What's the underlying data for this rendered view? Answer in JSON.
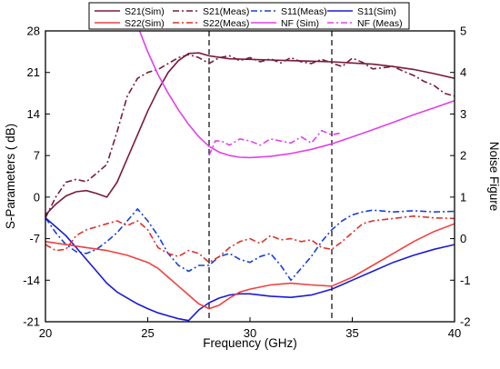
{
  "chart_data": {
    "type": "line",
    "xlabel": "Frequency (GHz)",
    "ylabel": "S-Parameters ( dB)",
    "y2label": "Noise Figure",
    "xlim": [
      20,
      40
    ],
    "ylim": [
      -21,
      28
    ],
    "y2lim": [
      -2,
      5
    ],
    "xticks": [
      20,
      25,
      30,
      35,
      40
    ],
    "yticks": [
      -21,
      -14,
      -7,
      0,
      7,
      14,
      21,
      28
    ],
    "y2ticks": [
      -2,
      -1,
      0,
      1,
      2,
      3,
      4,
      5
    ],
    "vlines": [
      28,
      34
    ],
    "grid": false,
    "legend_position": "top",
    "series": [
      {
        "name": "S21(Sim)",
        "axis": "left",
        "color": "#7a1a3a",
        "style": "solid",
        "x": [
          20,
          20.5,
          21,
          21.5,
          22,
          22.5,
          23,
          23.5,
          24,
          24.5,
          25,
          25.5,
          26,
          26.5,
          27,
          27.5,
          28,
          29,
          30,
          31,
          32,
          33,
          34,
          35,
          36,
          37,
          38,
          39,
          40
        ],
        "y": [
          -3,
          -1.2,
          0.2,
          0.9,
          1.1,
          0.6,
          0.0,
          2.5,
          6.5,
          10.5,
          14.5,
          18,
          21,
          23,
          24.2,
          24.3,
          23.8,
          23.3,
          23.2,
          23.1,
          23,
          22.9,
          22.8,
          22.6,
          22.4,
          22.0,
          21.5,
          20.8,
          20.0
        ]
      },
      {
        "name": "S21(Meas)",
        "axis": "left",
        "color": "#7a1a3a",
        "style": "dashdot",
        "x": [
          20,
          20.5,
          21,
          21.5,
          22,
          22.5,
          23,
          23.5,
          24,
          24.5,
          25,
          25.5,
          26,
          26.5,
          27,
          27.5,
          28,
          28.5,
          29,
          29.5,
          30,
          30.5,
          31,
          31.5,
          32,
          32.5,
          33,
          33.5,
          34,
          34.5,
          35,
          35.5,
          36,
          36.5,
          37,
          37.5,
          38,
          38.5,
          39,
          39.5,
          40
        ],
        "y": [
          -3.5,
          0,
          2.5,
          3.0,
          2.6,
          4,
          5.5,
          11,
          17,
          20,
          21,
          21.5,
          22.5,
          23.5,
          24.0,
          23.5,
          22.5,
          23.5,
          23.8,
          23.0,
          23.5,
          22.8,
          23.3,
          22.6,
          23.5,
          22.8,
          22.5,
          23.2,
          22.6,
          22.0,
          23.4,
          22.7,
          21.6,
          21.8,
          22.0,
          21.2,
          20.5,
          19.5,
          18.8,
          17.5,
          17.0
        ]
      },
      {
        "name": "S11(Meas)",
        "axis": "left",
        "color": "#1a3fd6",
        "style": "dashdot",
        "x": [
          20,
          20.5,
          21,
          21.5,
          22,
          22.5,
          23,
          23.5,
          24,
          24.5,
          25,
          25.5,
          26,
          26.5,
          27,
          27.5,
          28,
          28.5,
          29,
          29.5,
          30,
          30.5,
          31,
          31.5,
          32,
          32.5,
          33,
          33.5,
          34,
          34.5,
          35,
          35.5,
          36,
          37,
          38,
          39,
          40
        ],
        "y": [
          -3.5,
          -6.0,
          -8.0,
          -9.2,
          -9.5,
          -8.8,
          -7.5,
          -6.0,
          -4.0,
          -2.0,
          -4.0,
          -6.5,
          -9.5,
          -11.5,
          -12.5,
          -11.5,
          -11.5,
          -10.0,
          -9.5,
          -10.5,
          -11.0,
          -10.0,
          -9.5,
          -11.5,
          -14.0,
          -12.0,
          -10.0,
          -7.5,
          -5.5,
          -4.0,
          -3.0,
          -2.5,
          -2.2,
          -2.5,
          -2.3,
          -2.5,
          -2.4
        ]
      },
      {
        "name": "S11(Sim)",
        "axis": "left",
        "color": "#1a1ad6",
        "style": "solid",
        "x": [
          20,
          20.5,
          21,
          21.5,
          22,
          22.5,
          23,
          23.5,
          24,
          24.5,
          25,
          25.5,
          26,
          26.5,
          27,
          27.5,
          28,
          28.5,
          29,
          29.5,
          30,
          31,
          32,
          33,
          34,
          35,
          36,
          37,
          38,
          39,
          40
        ],
        "y": [
          -3.5,
          -5.0,
          -6.5,
          -8.5,
          -10.5,
          -12.5,
          -14.5,
          -16.0,
          -17.0,
          -18.0,
          -18.8,
          -19.5,
          -20.0,
          -20.5,
          -20.8,
          -19.0,
          -17.8,
          -17.0,
          -16.5,
          -16.3,
          -16.3,
          -16.7,
          -16.9,
          -16.5,
          -15.5,
          -14.0,
          -12.5,
          -11.0,
          -9.8,
          -8.8,
          -8.0
        ]
      },
      {
        "name": "S22(Sim)",
        "axis": "left",
        "color": "#f04040",
        "style": "solid",
        "x": [
          20,
          21,
          22,
          23,
          24,
          25,
          25.5,
          26,
          26.5,
          27,
          27.5,
          28,
          28.5,
          29,
          29.5,
          30,
          31,
          32,
          33,
          34,
          35,
          36,
          37,
          38,
          39,
          40
        ],
        "y": [
          -7.5,
          -8.0,
          -8.5,
          -9.0,
          -9.8,
          -11.0,
          -12.0,
          -13.5,
          -15.0,
          -16.5,
          -18.0,
          -18.8,
          -18.2,
          -17.0,
          -16.0,
          -15.5,
          -14.8,
          -14.5,
          -14.8,
          -15.0,
          -13.5,
          -11.5,
          -9.5,
          -7.5,
          -5.8,
          -4.5
        ]
      },
      {
        "name": "S22(Meas)",
        "axis": "left",
        "color": "#e0302a",
        "style": "dashdot",
        "x": [
          20,
          20.5,
          21,
          21.5,
          22,
          22.5,
          23,
          23.5,
          24,
          24.5,
          25,
          25.5,
          26,
          26.5,
          27,
          27.5,
          28,
          28.5,
          29,
          29.5,
          30,
          30.5,
          31,
          31.5,
          32,
          32.5,
          33,
          33.5,
          34,
          34.5,
          35,
          35.5,
          36,
          37,
          38,
          39,
          40
        ],
        "y": [
          -8.0,
          -9.0,
          -8.8,
          -6.5,
          -5.5,
          -5.0,
          -4.5,
          -4.0,
          -4.8,
          -4.0,
          -5.5,
          -8.5,
          -9.5,
          -10.0,
          -9.0,
          -9.5,
          -11.0,
          -10.0,
          -8.5,
          -7.5,
          -7.0,
          -7.8,
          -6.5,
          -7.2,
          -7.0,
          -7.5,
          -7.2,
          -8.5,
          -8.8,
          -7.5,
          -6.0,
          -4.5,
          -4.0,
          -3.6,
          -3.2,
          -3.5,
          -3.6
        ]
      },
      {
        "name": "NF (Sim)",
        "axis": "right",
        "color": "#e040e8",
        "style": "solid",
        "x": [
          24.6,
          25,
          25.5,
          26,
          26.5,
          27,
          27.5,
          28,
          28.5,
          29,
          29.5,
          30,
          31,
          32,
          33,
          34,
          35,
          36,
          37,
          38,
          39,
          40
        ],
        "y": [
          5.0,
          4.5,
          3.95,
          3.5,
          3.1,
          2.75,
          2.45,
          2.22,
          2.08,
          2.0,
          1.96,
          1.95,
          1.98,
          2.05,
          2.15,
          2.28,
          2.45,
          2.62,
          2.8,
          2.98,
          3.15,
          3.32
        ]
      },
      {
        "name": "NF (Meas)",
        "axis": "right",
        "color": "#e040e8",
        "style": "dashdot",
        "x": [
          28,
          28.3,
          28.6,
          29,
          29.5,
          30,
          30.5,
          31,
          31.5,
          32,
          32.5,
          33,
          33.5,
          34,
          34.5
        ],
        "y": [
          2.0,
          2.35,
          2.35,
          2.25,
          2.4,
          2.35,
          2.25,
          2.4,
          2.35,
          2.3,
          2.45,
          2.3,
          2.6,
          2.5,
          2.55
        ]
      }
    ]
  }
}
